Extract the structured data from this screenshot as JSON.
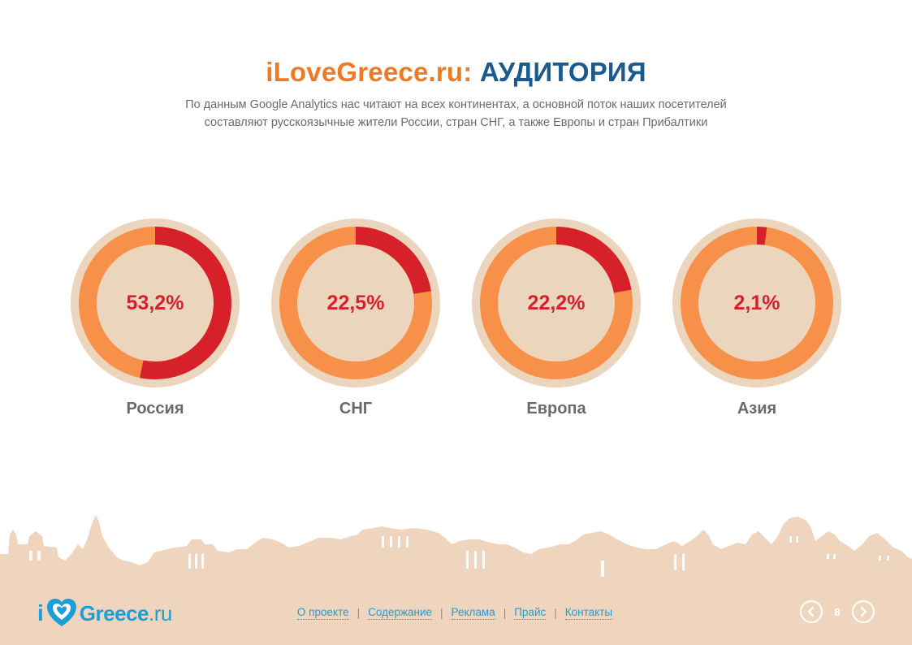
{
  "header": {
    "brand": "iLoveGreece.ru:",
    "title": "АУДИТОРИЯ",
    "subtitle_line1": "По данным Google Analytics нас читают на всех континентах, а основной поток наших посетителей",
    "subtitle_line2": "составляют русскоязычные жители России, стран СНГ, а также Европы и стран Прибалтики"
  },
  "colors": {
    "accent_red": "#d6202a",
    "ring_orange": "#f79049",
    "ring_bg": "#ecd5bd",
    "brand_orange": "#f07a24",
    "brand_blue": "#1a5a8e",
    "link_blue": "#1b9fd6",
    "skyline": "#efd5bd"
  },
  "chart_data": {
    "type": "pie",
    "series": [
      {
        "name": "Россия",
        "value": 53.2,
        "label": "53,2%"
      },
      {
        "name": "СНГ",
        "value": 22.5,
        "label": "22,5%"
      },
      {
        "name": "Европа",
        "value": 22.2,
        "label": "22,2%"
      },
      {
        "name": "Азия",
        "value": 2.1,
        "label": "2,1%"
      }
    ]
  },
  "footer": {
    "logo_i": "i",
    "logo_text": "Greece",
    "logo_tld": ".ru",
    "nav": [
      {
        "label": "О проекте"
      },
      {
        "label": "Содержание"
      },
      {
        "label": "Реклама"
      },
      {
        "label": "Прайс"
      },
      {
        "label": "Контакты"
      }
    ],
    "separator": "|",
    "page_number": "8",
    "prev_icon": "chevron-left-icon",
    "next_icon": "chevron-right-icon"
  }
}
